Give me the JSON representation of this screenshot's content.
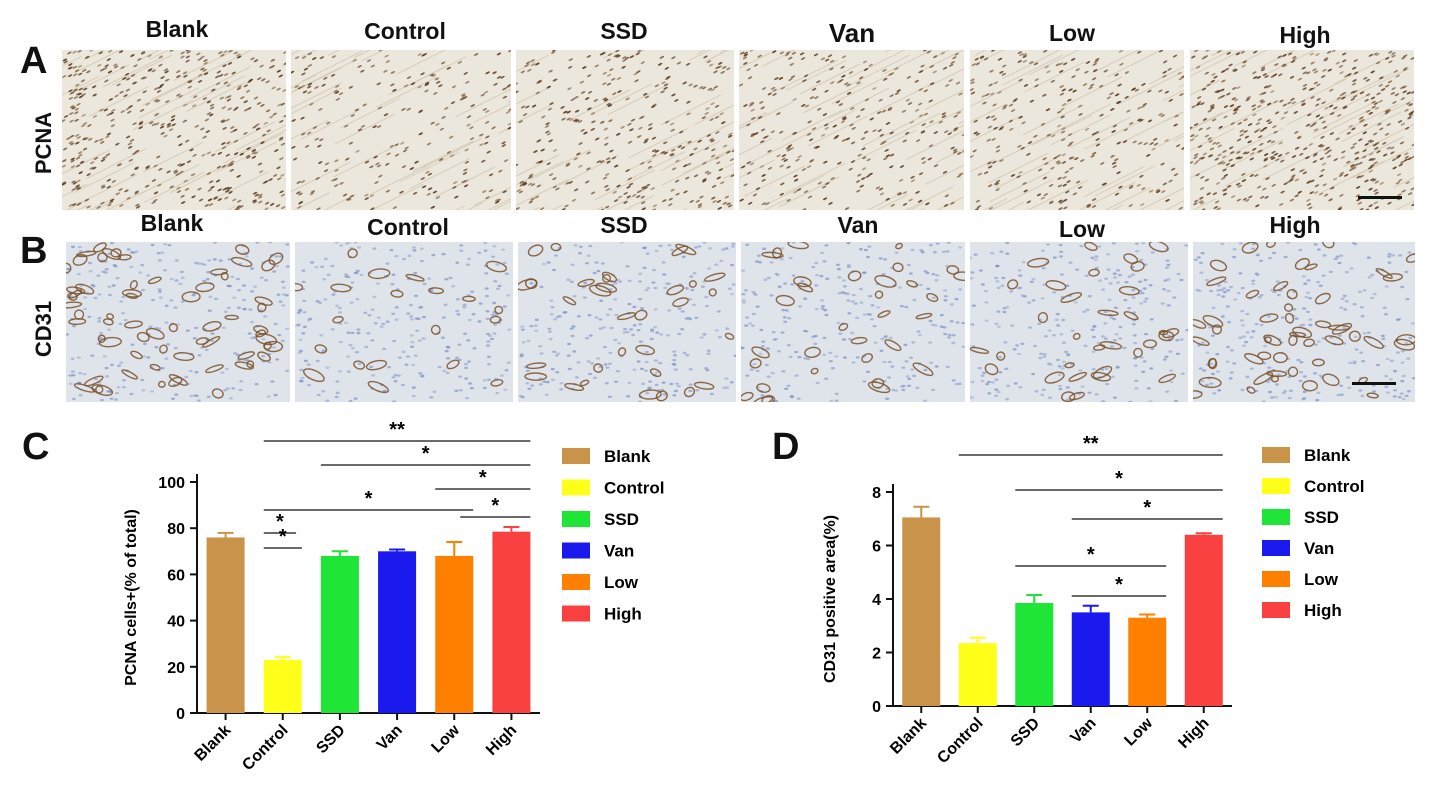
{
  "panels": {
    "A": {
      "letter": "A",
      "row_label": "PCNA"
    },
    "B": {
      "letter": "B",
      "row_label": "CD31"
    },
    "C": {
      "letter": "C"
    },
    "D": {
      "letter": "D"
    }
  },
  "groups": [
    "Blank",
    "Control",
    "SSD",
    "Van",
    "Low",
    "High"
  ],
  "colors": {
    "Blank": "#c99349",
    "Control": "#ffff1a",
    "SSD": "#1fe636",
    "Van": "#1a1aee",
    "Low": "#ff8000",
    "High": "#f94141",
    "stain_bg": "#ece7dc",
    "pcna_nuclei": "#5b3a1e",
    "cd31_bg": "#dfe3ea",
    "cd31_vessel": "#7a5129",
    "hematoxylin": "#6f86bf"
  },
  "chart_data": [
    {
      "type": "bar",
      "panel": "C",
      "categories": [
        "Blank",
        "Control",
        "SSD",
        "Van",
        "Low",
        "High"
      ],
      "values": [
        76,
        23,
        68,
        70,
        68,
        78.5
      ],
      "errors": [
        2,
        1.2,
        2,
        0.8,
        6,
        2
      ],
      "ylabel": "PCNA cells+(% of total)",
      "ylim": [
        0,
        100
      ],
      "yticks": [
        0,
        20,
        40,
        60,
        80,
        100
      ],
      "legend": [
        "Blank",
        "Control",
        "SSD",
        "Van",
        "Low",
        "High"
      ],
      "legend_position": "right",
      "significance": [
        {
          "from": "Control",
          "to": "High",
          "label": "**"
        },
        {
          "from": "SSD",
          "to": "High",
          "label": "*"
        },
        {
          "from": "Low",
          "to": "High",
          "label": "*"
        },
        {
          "from": "Control",
          "to": "Low",
          "label": "*"
        },
        {
          "from": "Low",
          "to": "High",
          "label": "*"
        },
        {
          "from": "Control",
          "to": "Van",
          "label": "*"
        },
        {
          "from": "Control",
          "to": "SSD",
          "label": "*"
        }
      ]
    },
    {
      "type": "bar",
      "panel": "D",
      "categories": [
        "Blank",
        "Control",
        "SSD",
        "Van",
        "Low",
        "High"
      ],
      "values": [
        7.05,
        2.35,
        3.85,
        3.5,
        3.3,
        6.4
      ],
      "errors": [
        0.4,
        0.2,
        0.3,
        0.25,
        0.12,
        0.06
      ],
      "ylabel": "CD31 positive area(%)",
      "ylim": [
        0,
        8
      ],
      "yticks": [
        0,
        2,
        4,
        6,
        8
      ],
      "legend": [
        "Blank",
        "Control",
        "SSD",
        "Van",
        "Low",
        "High"
      ],
      "legend_position": "right",
      "significance": [
        {
          "from": "Control",
          "to": "High",
          "label": "**"
        },
        {
          "from": "SSD",
          "to": "High",
          "label": "*"
        },
        {
          "from": "Van",
          "to": "High",
          "label": "*"
        },
        {
          "from": "SSD",
          "to": "Low",
          "label": "*"
        },
        {
          "from": "Van",
          "to": "Low",
          "label": "*"
        }
      ]
    }
  ]
}
